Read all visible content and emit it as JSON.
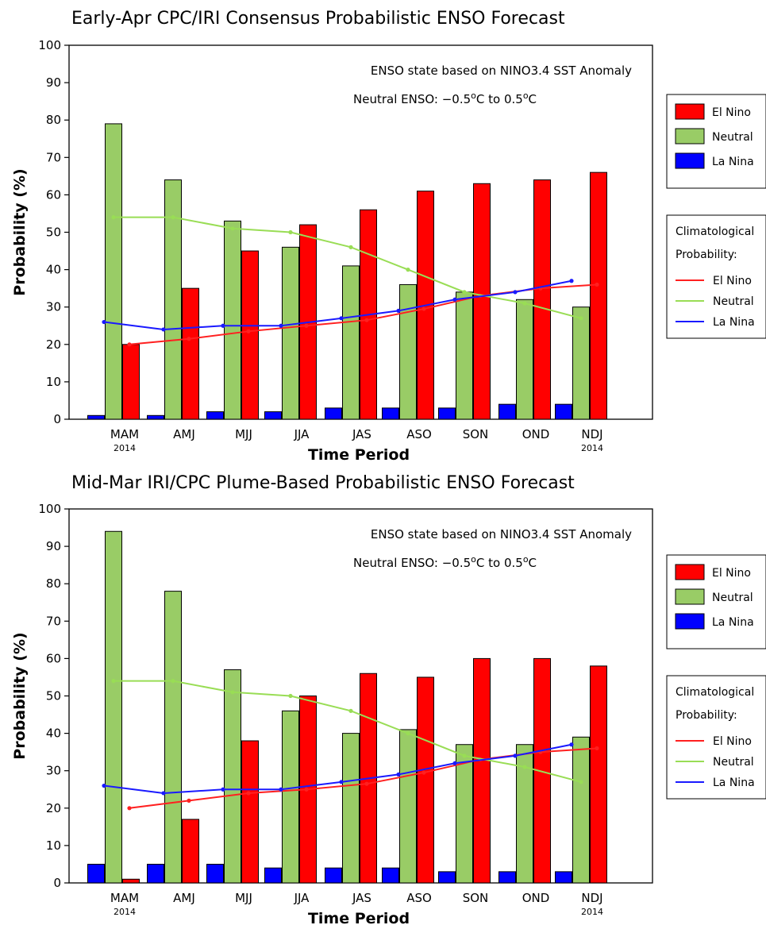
{
  "chart_data": [
    {
      "type": "bar",
      "title": "Early-Apr CPC/IRI Consensus Probabilistic ENSO Forecast",
      "xlabel": "Time Period",
      "ylabel": "Probability (%)",
      "ylim": [
        0,
        100
      ],
      "yticks": [
        0,
        10,
        20,
        30,
        40,
        50,
        60,
        70,
        80,
        90,
        100
      ],
      "categories": [
        "MAM",
        "AMJ",
        "MJJ",
        "JJA",
        "JAS",
        "ASO",
        "SON",
        "OND",
        "NDJ"
      ],
      "year_labels": {
        "first": "2014",
        "last": "2014"
      },
      "annotation": {
        "line1": "ENSO state based on NINO3.4 SST Anomaly",
        "line2_prefix": "Neutral ENSO: −0.5",
        "degree_sign": "o",
        "line2_mid": "C to 0.5",
        "line2_suffix": "C"
      },
      "legend_placement": "right",
      "grid": false,
      "series": [
        {
          "name": "La Nina",
          "color": "#0000ff",
          "values": [
            1,
            1,
            2,
            2,
            3,
            3,
            3,
            4,
            4
          ]
        },
        {
          "name": "Neutral",
          "color": "#99cc66",
          "values": [
            79,
            64,
            53,
            46,
            41,
            36,
            34,
            32,
            30
          ]
        },
        {
          "name": "El Nino",
          "color": "#ff0000",
          "values": [
            20,
            35,
            45,
            52,
            56,
            61,
            63,
            64,
            66
          ]
        }
      ],
      "climatology_title_line1": "Climatological",
      "climatology_title_line2": "Probability:",
      "climatology": [
        {
          "name": "El Nino",
          "color": "#ff2020",
          "values": [
            20,
            21.5,
            23.5,
            25,
            26.5,
            29.5,
            33,
            35,
            36
          ]
        },
        {
          "name": "Neutral",
          "color": "#99dd55",
          "values": [
            54,
            54,
            51,
            50,
            46,
            40,
            34,
            31,
            27
          ]
        },
        {
          "name": "La Nina",
          "color": "#1a1aff",
          "values": [
            26,
            24,
            25,
            25,
            27,
            29,
            32,
            34,
            37
          ]
        }
      ]
    },
    {
      "type": "bar",
      "title": "Mid-Mar IRI/CPC Plume-Based Probabilistic ENSO Forecast",
      "xlabel": "Time Period",
      "ylabel": "Probability (%)",
      "ylim": [
        0,
        100
      ],
      "yticks": [
        0,
        10,
        20,
        30,
        40,
        50,
        60,
        70,
        80,
        90,
        100
      ],
      "categories": [
        "MAM",
        "AMJ",
        "MJJ",
        "JJA",
        "JAS",
        "ASO",
        "SON",
        "OND",
        "NDJ"
      ],
      "year_labels": {
        "first": "2014",
        "last": "2014"
      },
      "annotation": {
        "line1": "ENSO state based on NINO3.4 SST Anomaly",
        "line2_prefix": "Neutral ENSO: −0.5",
        "degree_sign": "o",
        "line2_mid": "C to 0.5",
        "line2_suffix": "C"
      },
      "legend_placement": "right",
      "grid": false,
      "series": [
        {
          "name": "La Nina",
          "color": "#0000ff",
          "values": [
            5,
            5,
            5,
            4,
            4,
            4,
            3,
            3,
            3
          ]
        },
        {
          "name": "Neutral",
          "color": "#99cc66",
          "values": [
            94,
            78,
            57,
            46,
            40,
            41,
            37,
            37,
            39
          ]
        },
        {
          "name": "El Nino",
          "color": "#ff0000",
          "values": [
            1,
            17,
            38,
            50,
            56,
            55,
            60,
            60,
            58
          ]
        }
      ],
      "climatology_title_line1": "Climatological",
      "climatology_title_line2": "Probability:",
      "climatology": [
        {
          "name": "El Nino",
          "color": "#ff2020",
          "values": [
            20,
            22,
            24,
            25,
            26.5,
            29.5,
            33,
            35,
            36
          ]
        },
        {
          "name": "Neutral",
          "color": "#99dd55",
          "values": [
            54,
            54,
            51,
            50,
            46,
            40,
            34,
            31,
            27
          ]
        },
        {
          "name": "La Nina",
          "color": "#1a1aff",
          "values": [
            26,
            24,
            25,
            25,
            27,
            29,
            32,
            34,
            37
          ]
        }
      ]
    }
  ]
}
